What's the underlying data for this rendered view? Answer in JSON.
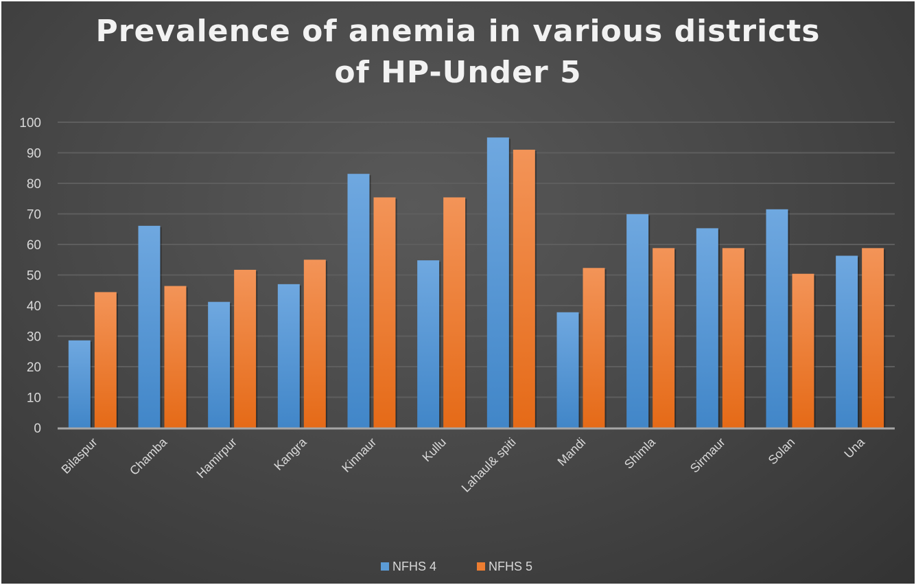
{
  "chart_data": {
    "type": "bar",
    "title": "Prevalence of anemia in various districts of HP-Under 5",
    "title_lines": [
      "Prevalence of anemia in various districts",
      "of HP-Under 5"
    ],
    "categories": [
      "Bilaspur",
      "Chamba",
      "Hamirpur",
      "Kangra",
      "Kinnaur",
      "Kullu",
      "Lahaul& spiti",
      "Mandi",
      "Shimla",
      "Sirmaur",
      "Solan",
      "Una"
    ],
    "series": [
      {
        "name": "NFHS 4",
        "color": "#5b9bd5",
        "values": [
          28.6,
          66.1,
          41.2,
          47.0,
          83.1,
          54.8,
          95.0,
          37.8,
          69.9,
          65.3,
          71.5,
          56.3
        ]
      },
      {
        "name": "NFHS 5",
        "color": "#ed7d31",
        "values": [
          44.4,
          46.4,
          51.7,
          55.0,
          75.4,
          75.4,
          91.0,
          52.3,
          58.8,
          58.8,
          50.4,
          58.8
        ]
      }
    ],
    "ylim": [
      0,
      100
    ],
    "yticks": [
      0,
      10,
      20,
      30,
      40,
      50,
      60,
      70,
      80,
      90,
      100
    ],
    "grid": true,
    "legend_position": "bottom",
    "xlabel": "",
    "ylabel": ""
  }
}
